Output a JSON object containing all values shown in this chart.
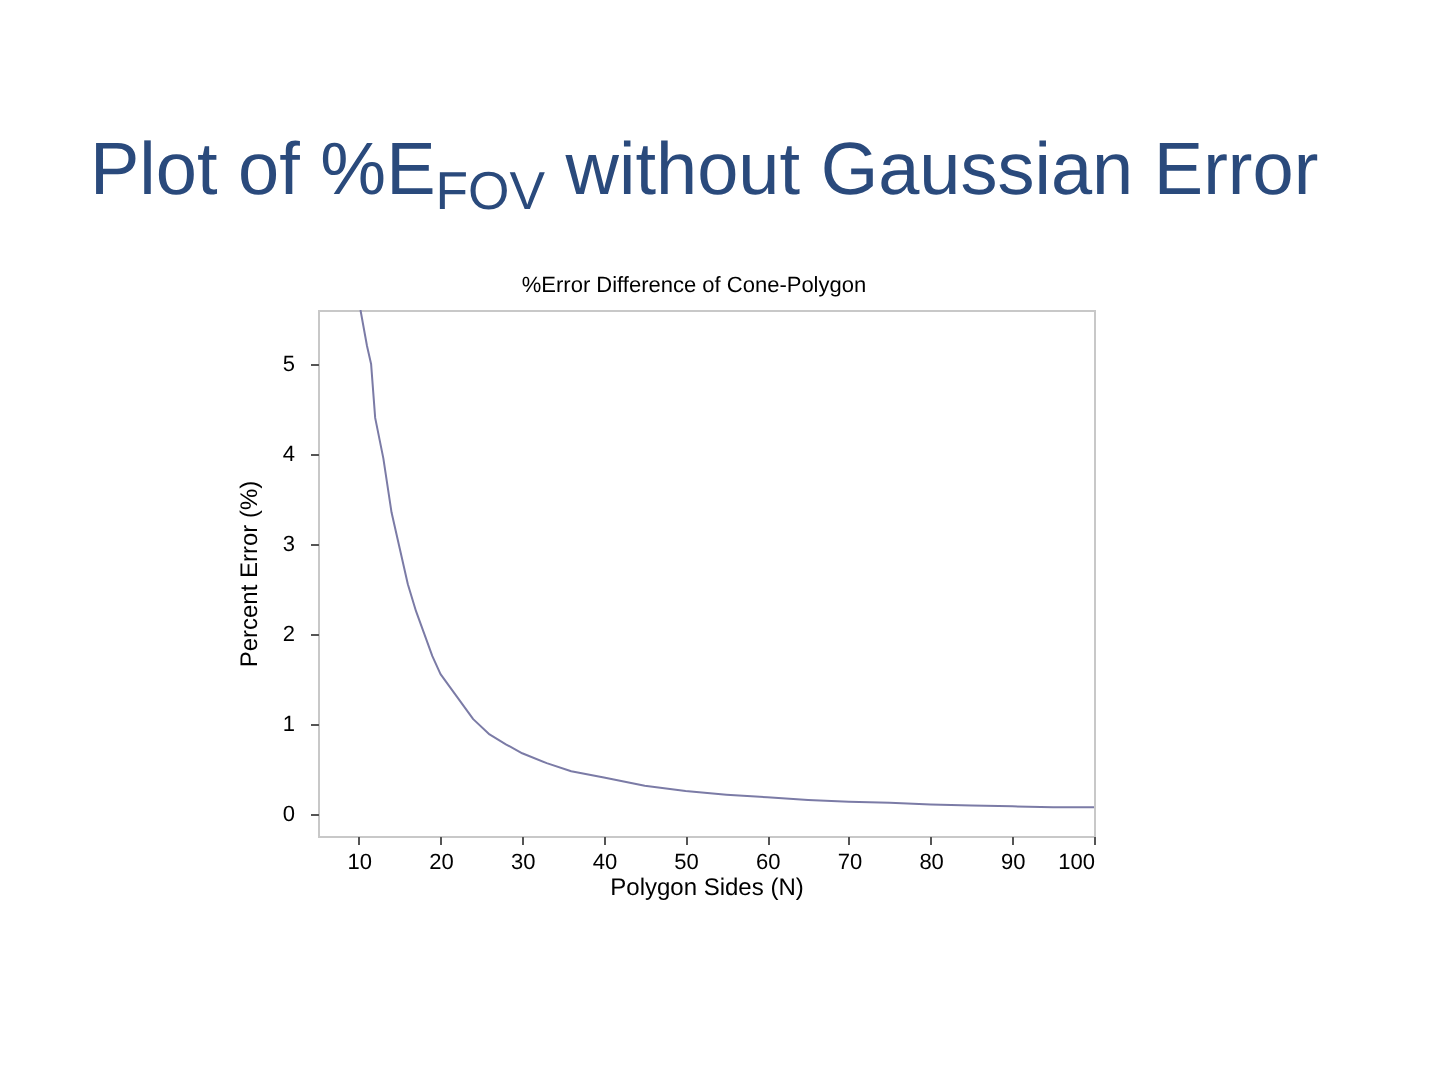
{
  "chart_data": {
    "type": "line",
    "title": "Plot of %E$_{FOV}$ without Gaussian Error",
    "subtitle": "%Error Difference of Cone-Polygon",
    "xlabel": "Polygon Sides (N)",
    "ylabel": "Percent Error (%)",
    "xlim": [
      5,
      100
    ],
    "ylim": [
      -0.25,
      5.6
    ],
    "xticks": [
      10,
      20,
      30,
      40,
      50,
      60,
      70,
      80,
      90,
      100
    ],
    "yticks": [
      0,
      1,
      2,
      3,
      4,
      5
    ],
    "grid": false,
    "line_style": "solid",
    "series": [
      {
        "color": "#7b7ba6",
        "x": [
          10.2,
          11,
          11.5,
          12,
          13,
          14,
          15,
          16,
          17,
          18,
          19,
          20,
          22,
          24,
          26,
          28,
          30,
          33,
          36,
          40,
          45,
          50,
          55,
          60,
          65,
          70,
          75,
          80,
          85,
          90,
          95,
          100
        ],
        "values": [
          5.6,
          5.2,
          5.0,
          4.4,
          3.95,
          3.35,
          2.95,
          2.55,
          2.25,
          2.0,
          1.75,
          1.55,
          1.3,
          1.05,
          0.88,
          0.77,
          0.67,
          0.56,
          0.47,
          0.4,
          0.31,
          0.25,
          0.21,
          0.18,
          0.15,
          0.13,
          0.12,
          0.1,
          0.09,
          0.08,
          0.07,
          0.07
        ]
      }
    ]
  }
}
